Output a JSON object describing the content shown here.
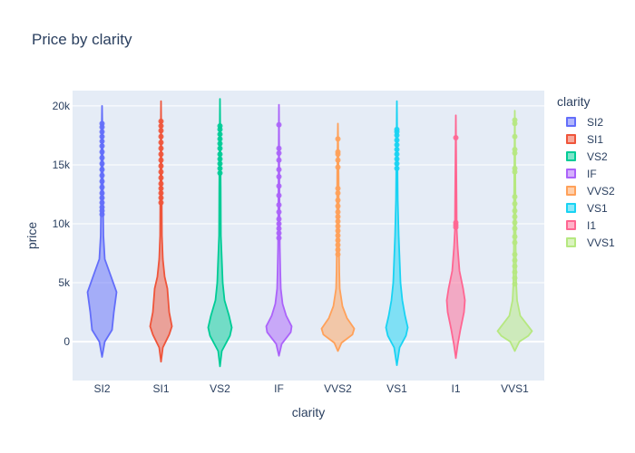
{
  "chart_data": {
    "type": "violin",
    "title": "Price by clarity",
    "xlabel": "clarity",
    "ylabel": "price",
    "ylim": [
      -3300,
      21300
    ],
    "yticks": [
      0,
      5000,
      10000,
      15000,
      20000
    ],
    "yticklabels": [
      "0",
      "5k",
      "10k",
      "15k",
      "20k"
    ],
    "categories": [
      "SI2",
      "SI1",
      "VS2",
      "IF",
      "VVS2",
      "VS1",
      "I1",
      "VVS1"
    ],
    "legend": {
      "title": "clarity",
      "position": "right"
    },
    "grid": true,
    "series": [
      {
        "name": "SI2",
        "color": "#636efa",
        "min": -1300,
        "max": 20000,
        "widths": [
          [
            -1300,
            0
          ],
          [
            0,
            3
          ],
          [
            1000,
            11
          ],
          [
            2500,
            13
          ],
          [
            4200,
            16
          ],
          [
            5500,
            10
          ],
          [
            7000,
            3
          ],
          [
            9000,
            1.5
          ],
          [
            12000,
            1
          ],
          [
            16000,
            0.8
          ],
          [
            20000,
            0
          ]
        ],
        "outliers": [
          10800,
          11100,
          11400,
          11800,
          12200,
          12600,
          13100,
          13600,
          14100,
          14600,
          15100,
          15600,
          16100,
          16600,
          17000,
          17400,
          17800,
          18200,
          18500
        ]
      },
      {
        "name": "SI1",
        "color": "#ef553b",
        "min": -1700,
        "max": 20400,
        "widths": [
          [
            -1700,
            0
          ],
          [
            -500,
            2
          ],
          [
            600,
            9
          ],
          [
            1300,
            12
          ],
          [
            2500,
            9
          ],
          [
            4500,
            7
          ],
          [
            5500,
            4
          ],
          [
            7000,
            2
          ],
          [
            9000,
            1
          ],
          [
            12000,
            0.8
          ],
          [
            20400,
            0
          ]
        ],
        "outliers": [
          11800,
          12200,
          12600,
          13000,
          13400,
          13900,
          14400,
          14900,
          15400,
          15900,
          16400,
          16900,
          17400,
          17900,
          18300,
          18700
        ]
      },
      {
        "name": "VS2",
        "color": "#00cc96",
        "min": -2100,
        "max": 20600,
        "widths": [
          [
            -2100,
            0
          ],
          [
            -800,
            2
          ],
          [
            500,
            11
          ],
          [
            1200,
            13
          ],
          [
            2200,
            10
          ],
          [
            3500,
            5
          ],
          [
            5000,
            3
          ],
          [
            7000,
            2
          ],
          [
            9000,
            1
          ],
          [
            13000,
            0.8
          ],
          [
            20600,
            0
          ]
        ],
        "outliers": [
          14300,
          14700,
          15100,
          15500,
          15900,
          16400,
          16800,
          17200,
          17600,
          18000,
          18300
        ]
      },
      {
        "name": "IF",
        "color": "#ab63fa",
        "min": -1200,
        "max": 20100,
        "widths": [
          [
            -1200,
            0
          ],
          [
            -200,
            3
          ],
          [
            800,
            13
          ],
          [
            1300,
            14
          ],
          [
            2200,
            8
          ],
          [
            3200,
            4
          ],
          [
            4500,
            2
          ],
          [
            6000,
            1.5
          ],
          [
            8000,
            1
          ],
          [
            12000,
            0.6
          ],
          [
            20100,
            0
          ]
        ],
        "outliers": [
          8800,
          9200,
          9600,
          10000,
          10400,
          11000,
          11600,
          12400,
          13200,
          14000,
          14600,
          15400,
          16000,
          16400,
          18400
        ]
      },
      {
        "name": "VVS2",
        "color": "#ffa15a",
        "min": -800,
        "max": 18500,
        "widths": [
          [
            -800,
            0
          ],
          [
            -100,
            4
          ],
          [
            600,
            16
          ],
          [
            1100,
            18
          ],
          [
            2000,
            10
          ],
          [
            3000,
            5
          ],
          [
            4500,
            2
          ],
          [
            6000,
            1.5
          ],
          [
            9000,
            1
          ],
          [
            14000,
            0.8
          ],
          [
            18500,
            0
          ]
        ],
        "outliers": [
          7400,
          7800,
          8200,
          8600,
          9000,
          9400,
          9800,
          10200,
          10600,
          11000,
          11500,
          12000,
          12600,
          13000,
          14800,
          15400,
          15900,
          16100,
          17200
        ]
      },
      {
        "name": "VS1",
        "color": "#19d3f3",
        "min": -2000,
        "max": 20400,
        "widths": [
          [
            -2000,
            0
          ],
          [
            -500,
            3
          ],
          [
            500,
            10
          ],
          [
            1200,
            12
          ],
          [
            2200,
            9
          ],
          [
            3500,
            6
          ],
          [
            5000,
            4
          ],
          [
            7000,
            3
          ],
          [
            9000,
            2
          ],
          [
            12000,
            1
          ],
          [
            20400,
            0
          ]
        ],
        "outliers": [
          14700,
          15100,
          15500,
          15900,
          16300,
          16700,
          17100,
          17500,
          17800,
          18000
        ]
      },
      {
        "name": "I1",
        "color": "#ff6692",
        "min": -1400,
        "max": 19200,
        "widths": [
          [
            -1400,
            0
          ],
          [
            -300,
            2
          ],
          [
            1000,
            5
          ],
          [
            2500,
            9
          ],
          [
            3500,
            10
          ],
          [
            4500,
            8
          ],
          [
            6000,
            4
          ],
          [
            8000,
            2
          ],
          [
            9500,
            1
          ],
          [
            12000,
            0.8
          ],
          [
            19200,
            0
          ]
        ],
        "outliers": [
          9700,
          9900,
          10100,
          17300
        ]
      },
      {
        "name": "VVS1",
        "color": "#b6e880",
        "min": -800,
        "max": 19600,
        "widths": [
          [
            -800,
            0
          ],
          [
            0,
            5
          ],
          [
            500,
            15
          ],
          [
            900,
            19
          ],
          [
            1400,
            14
          ],
          [
            2200,
            6
          ],
          [
            3500,
            2.5
          ],
          [
            5000,
            1.5
          ],
          [
            8000,
            1
          ],
          [
            12000,
            0.8
          ],
          [
            19600,
            0
          ]
        ],
        "outliers": [
          4900,
          5400,
          5900,
          6400,
          6900,
          7400,
          8400,
          8900,
          9600,
          10100,
          10600,
          11100,
          11700,
          12300,
          14400,
          14700,
          16000,
          16300,
          17400,
          18500,
          18800
        ]
      }
    ]
  }
}
